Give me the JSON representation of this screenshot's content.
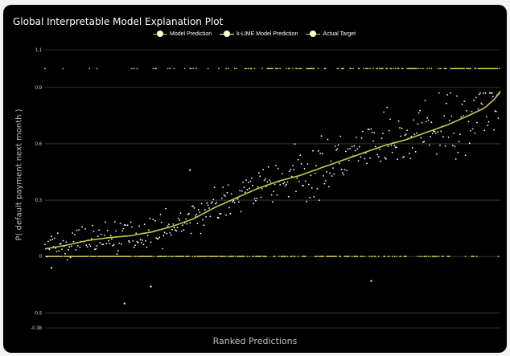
{
  "chart_data": {
    "type": "scatter",
    "title": "Global Interpretable Model Explanation Plot",
    "xlabel": "Ranked Predictions",
    "ylabel": "P( default payment next month )",
    "ylim": [
      -0.38,
      1.1
    ],
    "yticks": [
      1.1,
      0.9,
      0.6,
      0.3,
      0,
      -0.3,
      -0.38
    ],
    "ytick_labels": [
      "1.1",
      "0.9",
      "0.6",
      "0.3",
      "0",
      "-0.3",
      "-0.38"
    ],
    "grid": true,
    "legend_position": "top",
    "n_points": 430,
    "series": [
      {
        "name": "Model Prediction",
        "kind": "line",
        "color": "#c9c94a",
        "x": [
          0,
          20,
          40,
          60,
          80,
          100,
          120,
          140,
          160,
          180,
          200,
          220,
          240,
          260,
          280,
          300,
          320,
          340,
          360,
          380,
          400,
          415,
          425,
          430
        ],
        "values": [
          0.04,
          0.06,
          0.085,
          0.1,
          0.11,
          0.13,
          0.16,
          0.2,
          0.26,
          0.31,
          0.36,
          0.4,
          0.43,
          0.47,
          0.51,
          0.55,
          0.59,
          0.62,
          0.66,
          0.7,
          0.75,
          0.79,
          0.84,
          0.88
        ]
      },
      {
        "name": "k-LIME Model Prediction",
        "kind": "scatter",
        "color": "#ffffff",
        "trend": "scattered around the model prediction curve with noise of about ±0.15; outliers near -0.25 and -0.16 at the low end and up to 0.87 at the high end",
        "x_range": [
          0,
          430
        ],
        "y_range": [
          -0.25,
          0.87
        ]
      },
      {
        "name": "Actual Target",
        "kind": "scatter",
        "color": "#d6d64f",
        "values_set": [
          0,
          1
        ],
        "trend": "binary targets: mostly 0 on the left, increasingly 1 toward the right"
      }
    ]
  },
  "colors": {
    "background": "#000000",
    "grid": "#5a5a5a",
    "model_line": "#c9c94a",
    "klime_points": "#ffffff",
    "actual_points": "#d6d64f"
  }
}
